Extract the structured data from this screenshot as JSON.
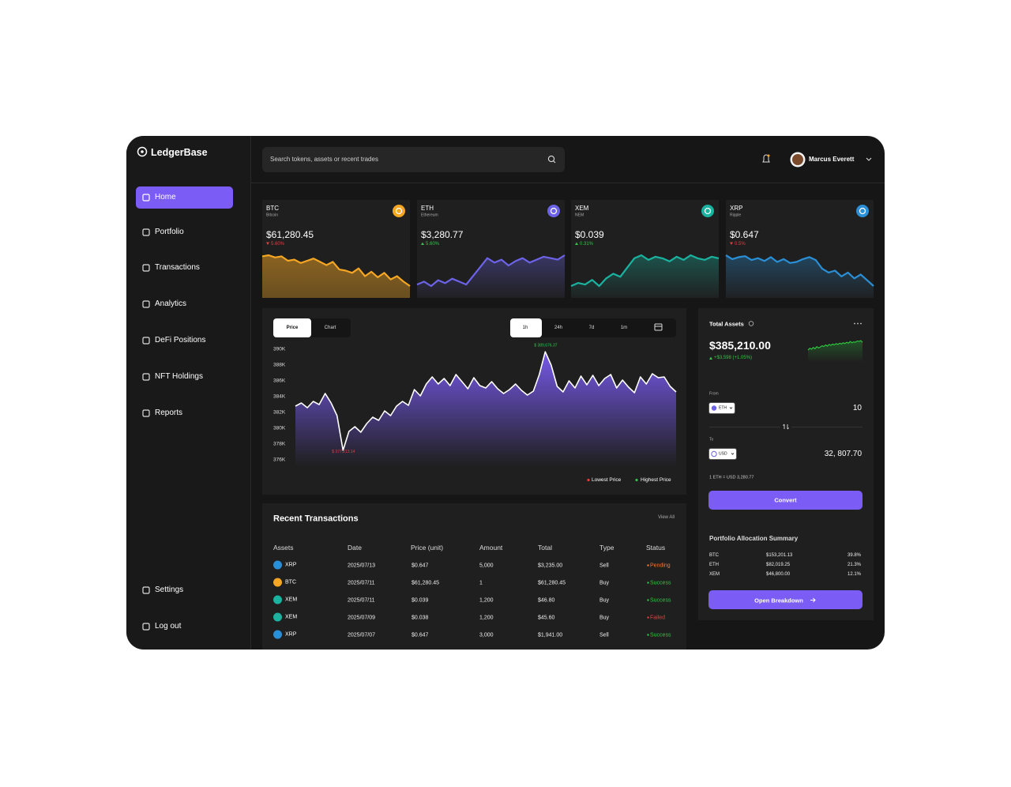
{
  "brand": "LedgerBase",
  "nav": [
    "Home",
    "Portfolio",
    "Transactions",
    "Analytics",
    "DeFi Positions",
    "NFT Holdings",
    "Reports"
  ],
  "nav_bottom": [
    "Settings",
    "Log out"
  ],
  "search_placeholder": "Search tokens, assets or recent trades",
  "user_name": "Marcus Everett",
  "tickers": [
    {
      "symbol": "BTC",
      "name": "Bitcoin",
      "price": "$61,280.45",
      "change": "5.60%",
      "trend": "down",
      "color": "#f5a623",
      "values": [
        60,
        61,
        59,
        60,
        56,
        57,
        54,
        56,
        58,
        55,
        52,
        55,
        48,
        47,
        45,
        49,
        42,
        46,
        41,
        45,
        39,
        42,
        37,
        33
      ]
    },
    {
      "symbol": "ETH",
      "name": "Ethereum",
      "price": "$3,280.77",
      "change": "5.60%",
      "trend": "up",
      "color": "#6c63e8",
      "values": [
        40,
        42,
        39,
        43,
        41,
        44,
        42,
        40,
        46,
        52,
        58,
        55,
        57,
        53,
        56,
        58,
        55,
        57,
        59,
        58,
        57,
        60
      ]
    },
    {
      "symbol": "XEM",
      "name": "NEM",
      "price": "$0.039",
      "change": "0.31%",
      "trend": "up",
      "color": "#19b3a0",
      "values": [
        40,
        42,
        41,
        44,
        40,
        45,
        48,
        46,
        52,
        58,
        60,
        57,
        59,
        58,
        56,
        59,
        57,
        60,
        58,
        57,
        59,
        58
      ]
    },
    {
      "symbol": "XRP",
      "name": "Ripple",
      "price": "$0.647",
      "change": "0.5%",
      "trend": "down",
      "color": "#2a8fd6",
      "values": [
        62,
        58,
        60,
        61,
        57,
        59,
        56,
        60,
        55,
        58,
        54,
        55,
        58,
        60,
        57,
        48,
        44,
        46,
        40,
        44,
        38,
        42,
        36,
        30
      ]
    }
  ],
  "price_chart": {
    "type": "area",
    "tabs": [
      "Price",
      "Chart"
    ],
    "ranges": [
      "1h",
      "24h",
      "7d",
      "1m"
    ],
    "color": "#7b5cf5",
    "ylim": [
      376000,
      390000
    ],
    "yticks": [
      {
        "value": 390000,
        "label": "390K"
      },
      {
        "value": 388000,
        "label": "388K"
      },
      {
        "value": 386000,
        "label": "386K"
      },
      {
        "value": 384000,
        "label": "384K"
      },
      {
        "value": 382000,
        "label": "382K"
      },
      {
        "value": 380000,
        "label": "380K"
      },
      {
        "value": 378000,
        "label": "378K"
      },
      {
        "value": 376000,
        "label": "376K"
      }
    ],
    "values": [
      382800,
      383200,
      382600,
      383400,
      383000,
      384400,
      383200,
      381600,
      377213.14,
      379600,
      380200,
      379500,
      380600,
      381400,
      381000,
      382200,
      381600,
      382800,
      383400,
      382900,
      384900,
      384100,
      385600,
      386500,
      385600,
      386300,
      385400,
      386800,
      385900,
      385000,
      386400,
      385400,
      385100,
      385900,
      385000,
      384400,
      384900,
      385600,
      384800,
      384200,
      384700,
      386800,
      389676.37,
      388000,
      385300,
      384600,
      386000,
      385100,
      386600,
      385500,
      386700,
      385400,
      386300,
      386800,
      385100,
      386100,
      385200,
      384500,
      386500,
      385600,
      386900,
      386400,
      386500,
      385300,
      384600
    ],
    "low_label": "$ 377,213.14",
    "high_label": "$ 389,676.37",
    "legend": [
      "Lowest Price",
      "Highest Price"
    ]
  },
  "total_assets": {
    "title": "Total Assets",
    "value": "$385,210.00",
    "change": "+$3,598 (+1.05%)",
    "color": "#2ecc40",
    "values": [
      40,
      44,
      42,
      46,
      43,
      48,
      45,
      47,
      50,
      48,
      52,
      49,
      53,
      51,
      54,
      52,
      55,
      53,
      56,
      54,
      57,
      55,
      58,
      56,
      60,
      57,
      59,
      58,
      61,
      60,
      62,
      58
    ]
  },
  "converter": {
    "from_label": "From",
    "from_currency": "ETH",
    "from_amount": "10",
    "to_label": "To",
    "to_currency": "USD",
    "to_amount": "32, 807.70",
    "rate": "1 ETH = USD 3,280.77",
    "button": "Convert"
  },
  "allocation": {
    "title": "Portfolio Allocation Summary",
    "rows": [
      [
        "BTC",
        "$153,201.13",
        "39.8%"
      ],
      [
        "ETH",
        "$82,019.25",
        "21.3%"
      ],
      [
        "XEM",
        "$46,800.00",
        "12.1%"
      ]
    ],
    "button": "Open Breakdown"
  },
  "transactions": {
    "title": "Recent Transactions",
    "view_all": "View All",
    "columns": [
      "Assets",
      "Date",
      "Price (unit)",
      "Amount",
      "Total",
      "Type",
      "Status"
    ],
    "rows": [
      {
        "asset": "XRP",
        "date": "2025/07/13",
        "price": "$0.647",
        "amount": "5,000",
        "total": "$3,235.00",
        "type": "Sell",
        "status": "Pending",
        "status_color": "#f07a3a"
      },
      {
        "asset": "BTC",
        "date": "2025/07/11",
        "price": "$61,280.45",
        "amount": "1",
        "total": "$61,280.45",
        "type": "Buy",
        "status": "Success",
        "status_color": "#35c24b"
      },
      {
        "asset": "XEM",
        "date": "2025/07/11",
        "price": "$0.039",
        "amount": "1,200",
        "total": "$46.80",
        "type": "Buy",
        "status": "Success",
        "status_color": "#35c24b"
      },
      {
        "asset": "XEM",
        "date": "2025/07/09",
        "price": "$0.038",
        "amount": "1,200",
        "total": "$45.60",
        "type": "Buy",
        "status": "Failed",
        "status_color": "#e04040"
      },
      {
        "asset": "XRP",
        "date": "2025/07/07",
        "price": "$0.647",
        "amount": "3,000",
        "total": "$1,941.00",
        "type": "Sell",
        "status": "Success",
        "status_color": "#35c24b"
      }
    ]
  }
}
